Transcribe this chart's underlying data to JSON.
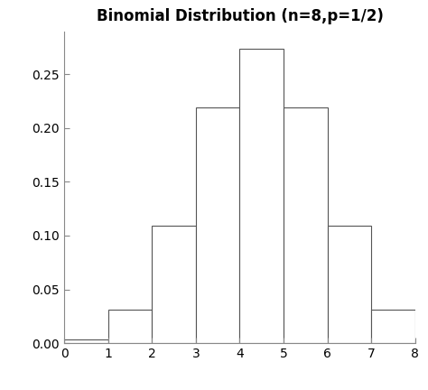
{
  "title": "Binomial Distribution (n=8,p=1/2)",
  "n": 8,
  "p": 0.5,
  "x_values": [
    0,
    1,
    2,
    3,
    4,
    5,
    6,
    7,
    8
  ],
  "pmf_values": [
    0.00390625,
    0.03125,
    0.109375,
    0.21875,
    0.2734375,
    0.21875,
    0.109375,
    0.03125,
    0.00390625
  ],
  "xlim": [
    0,
    8
  ],
  "ylim": [
    0,
    0.29
  ],
  "yticks": [
    0.0,
    0.05,
    0.1,
    0.15,
    0.2,
    0.25
  ],
  "xticks": [
    0,
    1,
    2,
    3,
    4,
    5,
    6,
    7,
    8
  ],
  "bar_color": "#ffffff",
  "bar_edgecolor": "#555555",
  "bar_linewidth": 0.8,
  "title_fontsize": 12,
  "tick_fontsize": 10,
  "background_color": "#ffffff"
}
